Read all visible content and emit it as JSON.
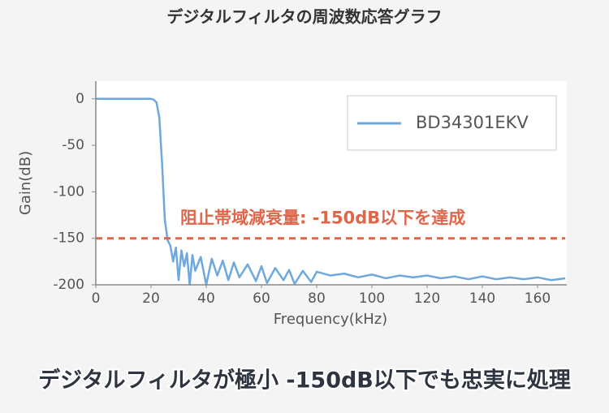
{
  "chart_data": {
    "type": "line",
    "title": "デジタルフィルタの周波数応答グラフ",
    "caption": "デジタルフィルタが極小 -150dB以下でも忠実に処理",
    "x_label": "Frequency(kHz)",
    "y_label": "Gain(dB)",
    "x": [
      0,
      10,
      20,
      21,
      22,
      23,
      24,
      25,
      26,
      27,
      28,
      29,
      30,
      31,
      32,
      33,
      34,
      35,
      36,
      38,
      40,
      42,
      44,
      46,
      48,
      50,
      52,
      55,
      58,
      60,
      62,
      65,
      68,
      70,
      72,
      75,
      78,
      80,
      85,
      90,
      95,
      100,
      105,
      110,
      115,
      120,
      125,
      130,
      135,
      140,
      145,
      150,
      155,
      160,
      165,
      170
    ],
    "series": [
      {
        "name": "BD34301EKV",
        "color": "#6fa8dc",
        "values": [
          0,
          0,
          0,
          -1,
          -4,
          -20,
          -70,
          -130,
          -152,
          -158,
          -175,
          -160,
          -195,
          -163,
          -180,
          -166,
          -200,
          -168,
          -185,
          -170,
          -200,
          -172,
          -190,
          -174,
          -195,
          -176,
          -192,
          -178,
          -196,
          -180,
          -198,
          -182,
          -195,
          -184,
          -199,
          -185,
          -197,
          -186,
          -190,
          -188,
          -192,
          -189,
          -193,
          -190,
          -192,
          -190,
          -193,
          -191,
          -194,
          -191,
          -194,
          -192,
          -194,
          -192,
          -195,
          -193
        ]
      }
    ],
    "xlim": [
      0,
      170
    ],
    "ylim": [
      -200,
      19
    ],
    "xticks": [
      0,
      20,
      40,
      60,
      80,
      100,
      120,
      140,
      160
    ],
    "yticks": [
      -200,
      -150,
      -100,
      -50,
      0
    ],
    "reference_line": {
      "value": -150,
      "color": "#e0664a",
      "label": "阻止帯域減衰量: -150dB以下を達成"
    },
    "legend": "upper right",
    "grid": false
  }
}
